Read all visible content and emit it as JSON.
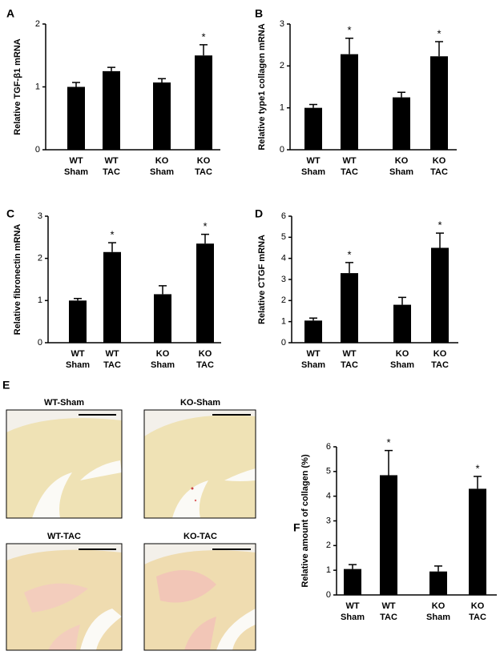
{
  "chart_data": [
    {
      "type": "bar",
      "panel": "A",
      "ylabel": "Relative TGF-β1 mRNA",
      "categories": [
        [
          "WT",
          "Sham"
        ],
        [
          "WT",
          "TAC"
        ],
        [
          "KO",
          "Sham"
        ],
        [
          "KO",
          "TAC"
        ]
      ],
      "values": [
        1.0,
        1.25,
        1.07,
        1.5
      ],
      "errors": [
        0.07,
        0.06,
        0.06,
        0.17
      ],
      "significance": [
        null,
        null,
        null,
        "*"
      ],
      "color": "#000000",
      "ylim": [
        0,
        2
      ],
      "yticks": [
        0,
        1,
        2
      ]
    },
    {
      "type": "bar",
      "panel": "B",
      "ylabel": "Relative type1 collagen mRNA",
      "categories": [
        [
          "WT",
          "Sham"
        ],
        [
          "WT",
          "TAC"
        ],
        [
          "KO",
          "Sham"
        ],
        [
          "KO",
          "TAC"
        ]
      ],
      "values": [
        1.0,
        2.28,
        1.25,
        2.23
      ],
      "errors": [
        0.08,
        0.38,
        0.12,
        0.35
      ],
      "significance": [
        null,
        "*",
        null,
        "*"
      ],
      "color": "#000000",
      "ylim": [
        0,
        3
      ],
      "yticks": [
        0,
        1,
        2,
        3
      ]
    },
    {
      "type": "bar",
      "panel": "C",
      "ylabel": "Relative fibronectin mRNA",
      "categories": [
        [
          "WT",
          "Sham"
        ],
        [
          "WT",
          "TAC"
        ],
        [
          "KO",
          "Sham"
        ],
        [
          "KO",
          "TAC"
        ]
      ],
      "values": [
        1.0,
        2.15,
        1.15,
        2.35
      ],
      "errors": [
        0.05,
        0.22,
        0.2,
        0.22
      ],
      "significance": [
        null,
        "*",
        null,
        "*"
      ],
      "color": "#000000",
      "ylim": [
        0,
        3
      ],
      "yticks": [
        0,
        1,
        2,
        3
      ]
    },
    {
      "type": "bar",
      "panel": "D",
      "ylabel": "Relative CTGF mRNA",
      "categories": [
        [
          "WT",
          "Sham"
        ],
        [
          "WT",
          "TAC"
        ],
        [
          "KO",
          "Sham"
        ],
        [
          "KO",
          "TAC"
        ]
      ],
      "values": [
        1.05,
        3.3,
        1.8,
        4.5
      ],
      "errors": [
        0.12,
        0.5,
        0.35,
        0.7
      ],
      "significance": [
        null,
        "*",
        null,
        "*"
      ],
      "color": "#000000",
      "ylim": [
        0,
        6
      ],
      "yticks": [
        0,
        1,
        2,
        3,
        4,
        5,
        6
      ]
    },
    {
      "type": "bar",
      "panel": "F",
      "ylabel": "Relative amount of collagen  (%)",
      "categories": [
        [
          "WT",
          "Sham"
        ],
        [
          "WT",
          "TAC"
        ],
        [
          "KO",
          "Sham"
        ],
        [
          "KO",
          "TAC"
        ]
      ],
      "values": [
        1.05,
        4.85,
        0.95,
        4.3
      ],
      "errors": [
        0.18,
        1.0,
        0.22,
        0.5
      ],
      "significance": [
        null,
        "*",
        null,
        "*"
      ],
      "color": "#000000",
      "ylim": [
        0,
        6
      ],
      "yticks": [
        0,
        1,
        2,
        3,
        4,
        5,
        6
      ]
    }
  ],
  "panel_e": {
    "panel": "E",
    "images": [
      "WT-Sham",
      "KO-Sham",
      "WT-TAC",
      "KO-TAC"
    ]
  }
}
